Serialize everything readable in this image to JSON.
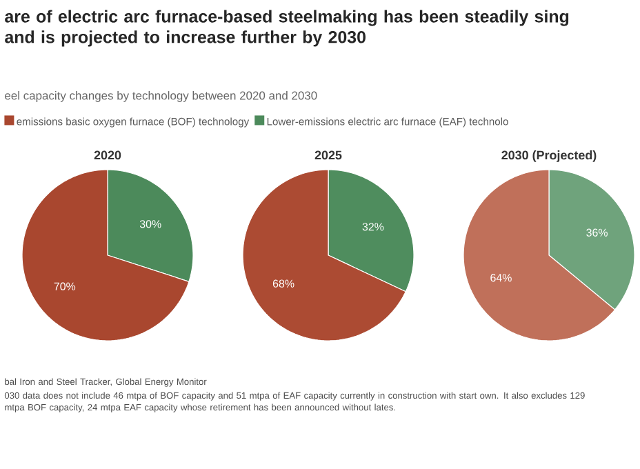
{
  "chart_data": [
    {
      "type": "other",
      "title": "are of electric arc furnace-based steelmaking has been steadily sing and is projected to increase further by 2030",
      "subtitle": "eel capacity changes by technology between 2020 and 2030",
      "annotations": [
        "bal Iron and Steel Tracker, Global Energy Monitor",
        "030 data does not include 46 mtpa of BOF capacity and 51 mtpa of EAF capacity currently in construction with start own. It also excludes 129 mtpa BOF capacity, 24 mtpa EAF capacity whose retirement has been announced without lates."
      ]
    },
    {
      "type": "pie",
      "title": "2020",
      "categories": [
        "emissions basic oxygen furnace (BOF) technology",
        "Lower-emissions electric arc furnace (EAF) technolo"
      ],
      "values": [
        70,
        30
      ],
      "colors": [
        "#a9472f",
        "#4c8a5b"
      ],
      "value_labels": [
        "70%",
        "30%"
      ],
      "legend": "top"
    },
    {
      "type": "pie",
      "title": "2025",
      "categories": [
        null,
        null
      ],
      "values": [
        68,
        32
      ],
      "colors": [
        "#ac4b33",
        "#4f8d5e"
      ],
      "value_labels": [
        "68%",
        "32%"
      ]
    },
    {
      "type": "pie",
      "title": "2030 (Projected)",
      "categories": [
        null,
        null
      ],
      "values": [
        64,
        36
      ],
      "colors": [
        "#c0705a",
        "#6fa37c"
      ],
      "value_labels": [
        "64%",
        "36%"
      ]
    }
  ]
}
